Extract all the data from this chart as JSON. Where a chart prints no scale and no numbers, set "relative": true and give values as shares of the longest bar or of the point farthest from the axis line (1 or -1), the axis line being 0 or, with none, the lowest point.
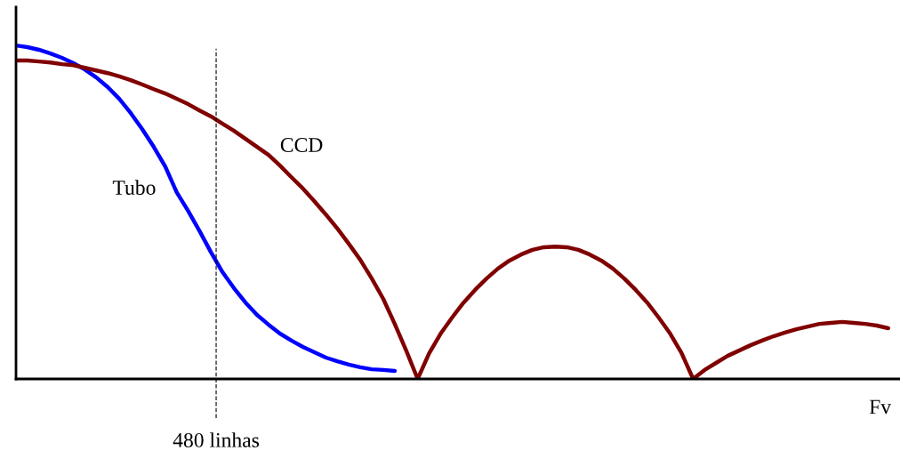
{
  "chart_data": {
    "type": "line",
    "relative": true,
    "xlabel": "Fv",
    "categories": [
      null,
      null,
      null,
      null,
      null,
      null,
      null,
      null,
      null,
      null,
      null,
      null,
      null,
      null,
      null,
      null,
      null,
      null,
      null,
      null,
      null,
      null,
      null,
      null,
      null,
      null,
      null,
      null,
      null,
      null,
      null,
      null,
      null,
      null,
      null,
      null,
      null,
      null,
      null,
      null,
      null,
      null,
      null,
      null,
      null,
      null,
      null,
      null,
      null,
      null,
      null,
      null,
      null,
      null,
      null,
      null,
      null,
      null,
      null,
      null,
      null,
      null,
      null,
      null,
      null,
      null,
      null,
      null,
      null,
      null,
      null,
      null,
      null,
      null,
      null,
      null,
      null
    ],
    "series": [
      {
        "name": "Tubo",
        "color": "#0000ff",
        "values": [
          1.0,
          0.995,
          0.987,
          0.976,
          0.963,
          0.947,
          0.928,
          0.904,
          0.875,
          0.84,
          0.797,
          0.749,
          0.696,
          0.637,
          0.56,
          0.504,
          0.443,
          0.379,
          0.32,
          0.272,
          0.229,
          0.192,
          0.163,
          0.136,
          0.115,
          0.096,
          0.08,
          0.064,
          0.053,
          0.043,
          0.035,
          0.029,
          0.027,
          0.024,
          null,
          null,
          null,
          null,
          null,
          null,
          null,
          null,
          null,
          null,
          null,
          null,
          null,
          null,
          null,
          null,
          null,
          null,
          null,
          null,
          null,
          null,
          null,
          null,
          null,
          null,
          null,
          null,
          null,
          null,
          null,
          null,
          null,
          null,
          null,
          null,
          null,
          null,
          null,
          null,
          null,
          null,
          null
        ]
      },
      {
        "name": "CCD",
        "color": "#800000",
        "values": [
          0.955,
          0.955,
          0.952,
          0.949,
          0.944,
          0.941,
          0.933,
          0.925,
          0.917,
          0.907,
          0.896,
          0.883,
          0.869,
          0.856,
          0.84,
          0.824,
          0.805,
          0.787,
          0.765,
          0.744,
          0.72,
          0.696,
          0.672,
          0.64,
          0.605,
          0.571,
          0.533,
          0.493,
          0.451,
          0.405,
          0.357,
          0.301,
          0.24,
          0.165,
          0.085,
          0,
          0.077,
          0.136,
          0.184,
          0.229,
          0.267,
          0.301,
          0.331,
          0.355,
          0.373,
          0.387,
          0.395,
          0.397,
          0.395,
          0.387,
          0.373,
          0.355,
          0.331,
          0.301,
          0.267,
          0.229,
          0.184,
          0.136,
          0.077,
          0,
          0.027,
          0.048,
          0.069,
          0.085,
          0.101,
          0.115,
          0.128,
          0.139,
          0.149,
          0.157,
          0.165,
          0.168,
          0.171,
          0.168,
          0.165,
          0.16,
          0.152
        ]
      }
    ],
    "annotations": [
      "480 linhas"
    ],
    "legend": false,
    "line_style": "solid",
    "marker": "none"
  }
}
